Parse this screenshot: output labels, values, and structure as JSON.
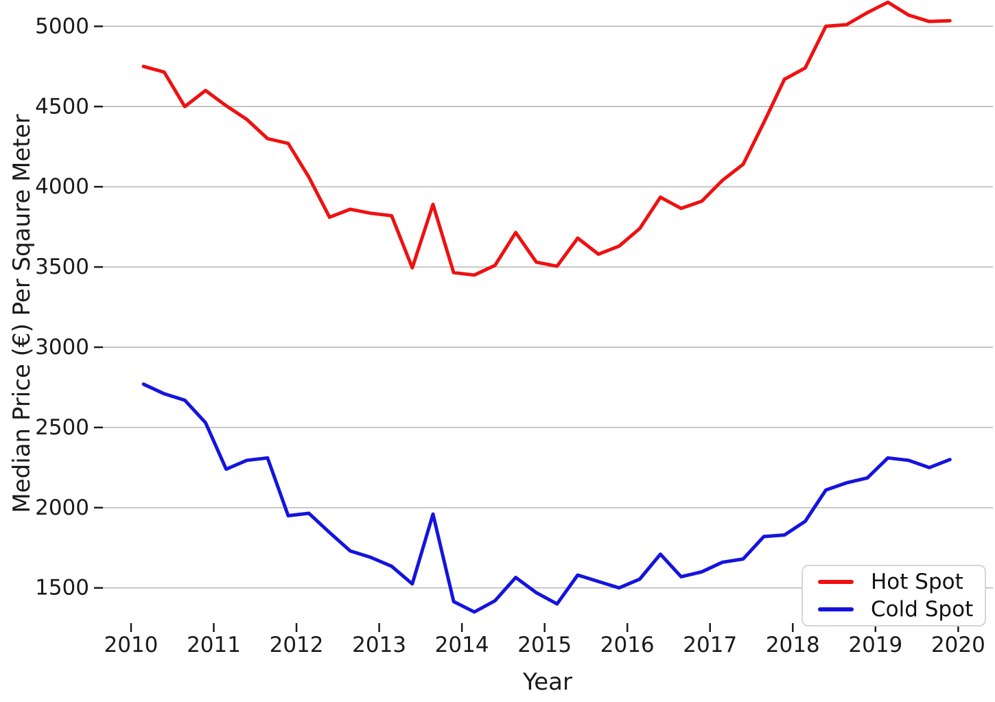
{
  "chart": {
    "ylabel": "Median Price (€) Per Sqaure Meter",
    "xlabel": "Year"
  },
  "legend": {
    "entries": [
      {
        "label": "Hot Spot",
        "color": "#ee1111"
      },
      {
        "label": "Cold Spot",
        "color": "#1414dd"
      }
    ]
  },
  "chart_data": {
    "type": "line",
    "title": "",
    "xlabel": "Year",
    "ylabel": "Median Price (€) Per Sqaure Meter",
    "x": [
      2010.15,
      2010.4,
      2010.65,
      2010.9,
      2011.15,
      2011.4,
      2011.65,
      2011.9,
      2012.15,
      2012.4,
      2012.65,
      2012.9,
      2013.15,
      2013.4,
      2013.65,
      2013.9,
      2014.15,
      2014.4,
      2014.65,
      2014.9,
      2015.15,
      2015.4,
      2015.65,
      2015.9,
      2016.15,
      2016.4,
      2016.65,
      2016.9,
      2017.15,
      2017.4,
      2017.65,
      2017.9,
      2018.15,
      2018.4,
      2018.65,
      2018.9,
      2019.15,
      2019.4,
      2019.65,
      2019.9
    ],
    "series": [
      {
        "name": "Hot Spot",
        "color": "#ee1111",
        "values": [
          4750,
          4715,
          4500,
          4600,
          4505,
          4420,
          4300,
          4270,
          4060,
          3810,
          3860,
          3835,
          3820,
          3495,
          3890,
          3465,
          3450,
          3510,
          3715,
          3530,
          3505,
          3680,
          3580,
          3630,
          3740,
          3935,
          3865,
          3910,
          4040,
          4140,
          4400,
          4670,
          4740,
          5000,
          5010,
          5085,
          5150,
          5070,
          5030,
          5035
        ]
      },
      {
        "name": "Cold Spot",
        "color": "#1414dd",
        "values": [
          2770,
          2710,
          2670,
          2530,
          2240,
          2295,
          2310,
          1950,
          1965,
          1845,
          1730,
          1690,
          1635,
          1525,
          1960,
          1415,
          1350,
          1420,
          1565,
          1470,
          1400,
          1580,
          1540,
          1500,
          1555,
          1710,
          1570,
          1600,
          1660,
          1680,
          1820,
          1830,
          1915,
          2110,
          2155,
          2185,
          2310,
          2295,
          2250,
          2300
        ]
      }
    ],
    "xticks": [
      2010,
      2011,
      2012,
      2013,
      2014,
      2015,
      2016,
      2017,
      2018,
      2019,
      2020
    ],
    "yticks": [
      1500,
      2000,
      2500,
      3000,
      3500,
      4000,
      4500,
      5000
    ],
    "xlim": [
      2009.66,
      2020.42
    ],
    "ylim": [
      1285,
      5164
    ],
    "grid": "horizontal",
    "grid_color": "#b0b0b0",
    "tick_color": "#1a1a1a",
    "legend_position": "lower right",
    "line_width": 5
  }
}
